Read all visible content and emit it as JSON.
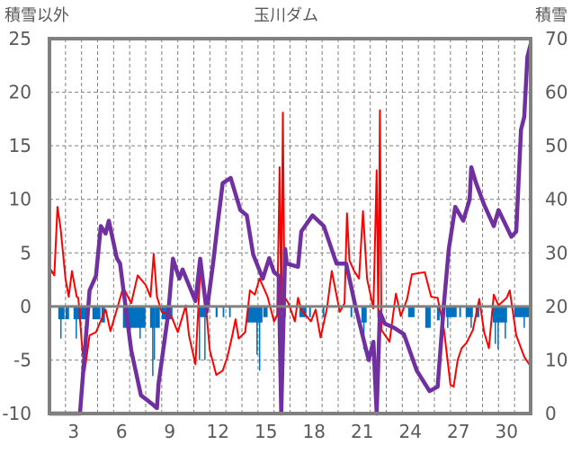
{
  "chart_data": {
    "type": "line",
    "title": "玉川ダム",
    "ylabel_left": "積雪以外",
    "ylabel_right": "積雪",
    "xlabel": "",
    "xlim": [
      1.5,
      31.5
    ],
    "ylim_left": [
      -10,
      25
    ],
    "ylim_right": [
      0,
      70
    ],
    "yticks_left": [
      -10,
      -5,
      0,
      5,
      10,
      15,
      20,
      25
    ],
    "yticks_right": [
      0,
      10,
      20,
      30,
      40,
      50,
      60,
      70
    ],
    "xticks": [
      3,
      6,
      9,
      12,
      15,
      18,
      21,
      24,
      27,
      30
    ],
    "xtick_labels": [
      "3",
      "6",
      "9",
      "12",
      "15",
      "18",
      "21",
      "24",
      "27",
      "30"
    ],
    "ytick_labels_left": [
      "-10",
      "-5",
      "0",
      "5",
      "10",
      "15",
      "20",
      "25"
    ],
    "ytick_labels_right": [
      "0",
      "10",
      "20",
      "30",
      "40",
      "50",
      "60",
      "70"
    ],
    "grid": true,
    "colors": {
      "temperature": "#ff0000",
      "snow": "#7030a0",
      "precip": "#0070c0",
      "axis": "#808080",
      "grid": "#808080"
    },
    "series": [
      {
        "name": "積雪以外 (赤)",
        "axis": "left",
        "color": "#ff0000",
        "points": [
          [
            1.5,
            2.3
          ],
          [
            1.6,
            3.4
          ],
          [
            1.8,
            2.9
          ],
          [
            2.0,
            9.3
          ],
          [
            2.2,
            7.2
          ],
          [
            2.5,
            2.6
          ],
          [
            2.7,
            0.9
          ],
          [
            2.9,
            3.3
          ],
          [
            3.2,
            0.9
          ],
          [
            3.3,
            0.8
          ],
          [
            3.55,
            -4.1
          ],
          [
            3.7,
            -6
          ],
          [
            4.0,
            -2.7
          ],
          [
            4.4,
            -2.4
          ],
          [
            5.0,
            -0.3
          ],
          [
            5.3,
            -2.3
          ],
          [
            5.7,
            -0.3
          ],
          [
            6.1,
            1.8
          ],
          [
            6.6,
            0.3
          ],
          [
            7.0,
            2.9
          ],
          [
            7.5,
            2.0
          ],
          [
            7.8,
            0.9
          ],
          [
            8.0,
            4.9
          ],
          [
            8.2,
            0.9
          ],
          [
            8.5,
            -0.5
          ],
          [
            9.1,
            -0.9
          ],
          [
            9.5,
            -2.4
          ],
          [
            10.0,
            0.1
          ],
          [
            10.2,
            -2.7
          ],
          [
            10.6,
            -5.4
          ],
          [
            10.9,
            3.2
          ],
          [
            11.1,
            2.6
          ],
          [
            11.5,
            -4.1
          ],
          [
            11.9,
            -6.4
          ],
          [
            12.3,
            -6
          ],
          [
            12.6,
            -4.7
          ],
          [
            12.9,
            -2.7
          ],
          [
            13.1,
            -1.2
          ],
          [
            13.3,
            -3
          ],
          [
            13.7,
            -2.4
          ],
          [
            14.0,
            1.5
          ],
          [
            14.3,
            1.1
          ],
          [
            14.6,
            2.6
          ],
          [
            15.1,
            0.9
          ],
          [
            15.5,
            -1.4
          ],
          [
            15.7,
            -0.8
          ],
          [
            15.85,
            13.0
          ],
          [
            15.95,
            -0.5
          ],
          [
            16.05,
            18.1
          ],
          [
            16.15,
            0.9
          ],
          [
            16.4,
            0.3
          ],
          [
            16.8,
            -1.4
          ],
          [
            17.0,
            0.8
          ],
          [
            17.2,
            -0.3
          ],
          [
            17.8,
            -1.4
          ],
          [
            18.1,
            -0.3
          ],
          [
            18.4,
            -2.9
          ],
          [
            18.8,
            -0.2
          ],
          [
            19.1,
            3.3
          ],
          [
            19.6,
            -0.5
          ],
          [
            19.9,
            0.3
          ],
          [
            20.05,
            8.7
          ],
          [
            20.2,
            4.3
          ],
          [
            20.5,
            3.3
          ],
          [
            20.8,
            2.6
          ],
          [
            21.05,
            8.9
          ],
          [
            21.3,
            2.6
          ],
          [
            21.7,
            -0.2
          ],
          [
            21.9,
            12.7
          ],
          [
            22.0,
            -1
          ],
          [
            22.1,
            18.3
          ],
          [
            22.2,
            -2.2
          ],
          [
            22.7,
            -3.3
          ],
          [
            23.1,
            1.2
          ],
          [
            23.4,
            -0.9
          ],
          [
            23.8,
            0.7
          ],
          [
            24.1,
            3.0
          ],
          [
            24.9,
            3.2
          ],
          [
            25.3,
            0.9
          ],
          [
            25.7,
            0.8
          ],
          [
            26.1,
            -2.2
          ],
          [
            26.5,
            -7.3
          ],
          [
            26.7,
            -7.5
          ],
          [
            26.95,
            -5
          ],
          [
            27.2,
            -3.9
          ],
          [
            27.5,
            -3.4
          ],
          [
            27.9,
            -2.2
          ],
          [
            28.3,
            0.7
          ],
          [
            28.6,
            -2.4
          ],
          [
            28.9,
            -3.9
          ],
          [
            29.2,
            1.1
          ],
          [
            29.5,
            0.1
          ],
          [
            30.0,
            0.8
          ],
          [
            30.2,
            1.5
          ],
          [
            30.6,
            -2.7
          ],
          [
            31.1,
            -4.7
          ],
          [
            31.5,
            -5.6
          ]
        ]
      },
      {
        "name": "積雪 (紫)",
        "axis": "right",
        "color": "#7030a0",
        "points": [
          [
            1.5,
            0
          ],
          [
            3.4,
            0
          ],
          [
            3.84,
            16.8
          ],
          [
            4.0,
            23
          ],
          [
            4.4,
            25.7
          ],
          [
            4.7,
            35
          ],
          [
            5.0,
            33.6
          ],
          [
            5.2,
            36
          ],
          [
            5.7,
            29
          ],
          [
            5.9,
            28
          ],
          [
            6.6,
            11.8
          ],
          [
            7.2,
            3.4
          ],
          [
            7.9,
            1.8
          ],
          [
            8.2,
            1
          ],
          [
            8.3,
            5.6
          ],
          [
            8.6,
            12
          ],
          [
            8.9,
            18.6
          ],
          [
            9.2,
            28.9
          ],
          [
            9.6,
            25.2
          ],
          [
            9.8,
            26.9
          ],
          [
            10.6,
            21
          ],
          [
            10.9,
            28.9
          ],
          [
            11.3,
            19
          ],
          [
            11.7,
            28
          ],
          [
            12.0,
            35.8
          ],
          [
            12.3,
            43
          ],
          [
            12.8,
            44
          ],
          [
            13.4,
            38
          ],
          [
            13.8,
            37
          ],
          [
            14.2,
            29.7
          ],
          [
            14.8,
            25.2
          ],
          [
            15.2,
            29
          ],
          [
            15.5,
            26.4
          ],
          [
            15.8,
            25.7
          ],
          [
            15.95,
            0
          ],
          [
            16.2,
            30.7
          ],
          [
            16.3,
            28
          ],
          [
            17.0,
            27.4
          ],
          [
            17.2,
            34
          ],
          [
            17.9,
            37
          ],
          [
            18.6,
            35
          ],
          [
            19.4,
            28
          ],
          [
            20.0,
            28
          ],
          [
            20.6,
            19.7
          ],
          [
            21.4,
            10
          ],
          [
            21.7,
            13.4
          ],
          [
            21.9,
            0
          ],
          [
            22.1,
            19
          ],
          [
            22.4,
            16.8
          ],
          [
            23.0,
            16
          ],
          [
            23.6,
            14.8
          ],
          [
            24.4,
            8
          ],
          [
            25.2,
            4.2
          ],
          [
            25.7,
            5
          ],
          [
            26.1,
            20.7
          ],
          [
            26.4,
            30.7
          ],
          [
            26.8,
            38.6
          ],
          [
            27.3,
            36
          ],
          [
            27.7,
            40
          ],
          [
            27.8,
            46
          ],
          [
            28.1,
            43
          ],
          [
            28.6,
            39
          ],
          [
            29.2,
            35
          ],
          [
            29.5,
            38
          ],
          [
            30.3,
            33
          ],
          [
            30.6,
            34
          ],
          [
            30.9,
            53
          ],
          [
            31.1,
            55.4
          ],
          [
            31.3,
            66.6
          ],
          [
            31.5,
            69
          ]
        ]
      },
      {
        "name": "積雪以外 (青, 棒)",
        "axis": "left",
        "type": "bar",
        "color": "#0070c0",
        "bars": [
          [
            2.05,
            2.44,
            -1.2
          ],
          [
            2.17,
            2.25,
            -3
          ],
          [
            2.5,
            2.72,
            -1.2
          ],
          [
            3.0,
            3.84,
            -1.2
          ],
          [
            3.13,
            3.21,
            -3
          ],
          [
            4.18,
            4.68,
            -1.2
          ],
          [
            4.74,
            4.96,
            -1.5
          ],
          [
            6.08,
            7.49,
            -2
          ],
          [
            6.49,
            6.57,
            -4
          ],
          [
            7.11,
            7.19,
            -3
          ],
          [
            7.77,
            8.1,
            -2
          ],
          [
            7.9,
            7.98,
            -6.5
          ],
          [
            8.0,
            8.06,
            -5
          ],
          [
            8.1,
            8.38,
            -2
          ],
          [
            8.5,
            9.17,
            -1.2
          ],
          [
            10.85,
            11.3,
            -1
          ],
          [
            10.81,
            10.89,
            -5
          ],
          [
            11.15,
            11.23,
            -5
          ],
          [
            11.86,
            11.98,
            -1
          ],
          [
            12.3,
            12.4,
            -1
          ],
          [
            12.7,
            12.8,
            -1
          ],
          [
            13.82,
            14.78,
            -1.5
          ],
          [
            14.4,
            14.48,
            -4.5
          ],
          [
            14.56,
            14.64,
            -6
          ],
          [
            14.83,
            15.1,
            -1
          ],
          [
            16.12,
            16.24,
            -1
          ],
          [
            17.08,
            17.52,
            -1
          ],
          [
            17.69,
            17.8,
            -1
          ],
          [
            18.53,
            18.64,
            -1
          ],
          [
            20.27,
            20.38,
            -1
          ],
          [
            20.95,
            21.28,
            -1.5
          ],
          [
            21.06,
            21.14,
            -4
          ],
          [
            23.86,
            24.26,
            -1
          ],
          [
            24.93,
            25.27,
            -2
          ],
          [
            25.66,
            25.83,
            -1.3
          ],
          [
            26.22,
            26.89,
            -1
          ],
          [
            26.29,
            26.37,
            -2
          ],
          [
            27.05,
            27.16,
            -1
          ],
          [
            27.45,
            27.9,
            -1
          ],
          [
            27.75,
            27.83,
            -2
          ],
          [
            28.07,
            28.3,
            -1
          ],
          [
            29.14,
            30.03,
            -1.5
          ],
          [
            29.26,
            29.34,
            -3.5
          ],
          [
            29.43,
            29.51,
            -4
          ],
          [
            29.88,
            29.96,
            -3
          ],
          [
            30.48,
            31.5,
            -1
          ],
          [
            31.06,
            31.14,
            -2
          ]
        ]
      }
    ]
  }
}
